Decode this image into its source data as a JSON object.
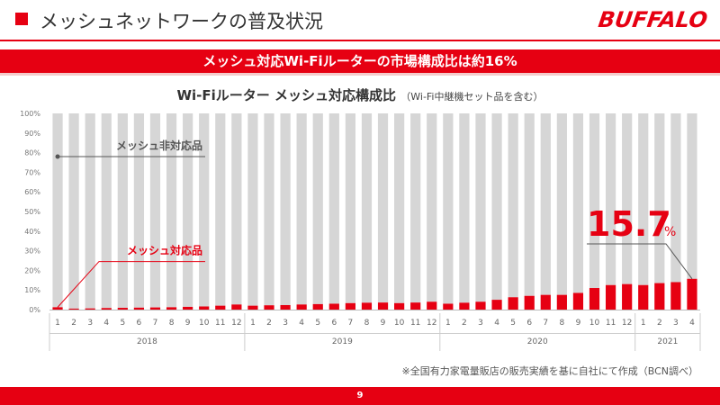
{
  "header": {
    "title": "メッシュネットワークの普及状況",
    "logo": "BUFFALO",
    "banner": "メッシュ対応Wi-Fiルーターの市場構成比は約16%"
  },
  "chart_data": {
    "type": "bar",
    "stacked": true,
    "title": "Wi-Fiルーター メッシュ対応構成比",
    "subtitle": "（Wi-Fi中継機セット品を含む）",
    "y_ticks": [
      "0%",
      "10%",
      "20%",
      "30%",
      "40%",
      "50%",
      "60%",
      "70%",
      "80%",
      "90%",
      "100%"
    ],
    "ylim": [
      0,
      100
    ],
    "categories": [
      "1",
      "2",
      "3",
      "4",
      "5",
      "6",
      "7",
      "8",
      "9",
      "10",
      "11",
      "12",
      "1",
      "2",
      "3",
      "4",
      "5",
      "6",
      "7",
      "8",
      "9",
      "10",
      "11",
      "12",
      "1",
      "2",
      "3",
      "4",
      "5",
      "6",
      "7",
      "8",
      "9",
      "10",
      "11",
      "12",
      "1",
      "2",
      "3",
      "4"
    ],
    "years": [
      {
        "label": "2018",
        "count": 12
      },
      {
        "label": "2019",
        "count": 12
      },
      {
        "label": "2020",
        "count": 12
      },
      {
        "label": "2021",
        "count": 4
      }
    ],
    "series": [
      {
        "name": "メッシュ対応品",
        "color": "#e60012",
        "values": [
          1.2,
          0.5,
          0.6,
          0.8,
          0.9,
          1.0,
          1.1,
          1.2,
          1.4,
          1.6,
          2.0,
          2.6,
          2.0,
          2.2,
          2.3,
          2.6,
          2.8,
          3.0,
          3.3,
          3.5,
          3.6,
          3.3,
          3.6,
          4.0,
          3.0,
          3.5,
          4.0,
          5.0,
          6.3,
          7.0,
          7.5,
          7.5,
          8.5,
          11.0,
          12.5,
          13.0,
          12.5,
          13.5,
          14.0,
          15.7
        ]
      },
      {
        "name": "メッシュ非対応品",
        "color": "#d6d6d6",
        "values": [
          98.8,
          99.5,
          99.4,
          99.2,
          99.1,
          99.0,
          98.9,
          98.8,
          98.6,
          98.4,
          98.0,
          97.4,
          98.0,
          97.8,
          97.7,
          97.4,
          97.2,
          97.0,
          96.7,
          96.5,
          96.4,
          96.7,
          96.4,
          96.0,
          97.0,
          96.5,
          96.0,
          95.0,
          93.7,
          93.0,
          92.5,
          92.5,
          91.5,
          89.0,
          87.5,
          87.0,
          87.5,
          86.5,
          86.0,
          84.3
        ]
      }
    ],
    "annotations": {
      "non_mesh_label": "メッシュ非対応品",
      "mesh_label": "メッシュ対応品",
      "highlight_value": "15.7",
      "highlight_unit": "%"
    }
  },
  "footnote": "※全国有力家電量販店の販売実績を基に自社にて作成（BCN調べ）",
  "footer": {
    "page_number": "9"
  }
}
